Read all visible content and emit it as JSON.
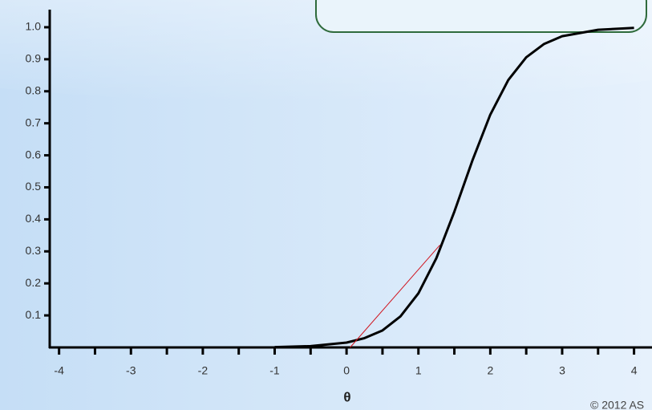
{
  "chart_data": {
    "type": "line",
    "x_label": "θ",
    "copyright": "© 2012 AS",
    "series": [
      {
        "color": "#000000",
        "width": 3,
        "x": [
          -1,
          -0.5,
          0,
          0.25,
          0.5,
          0.75,
          1,
          1.25,
          1.5,
          1.75,
          2,
          2.25,
          2.5,
          2.75,
          3,
          3.5,
          4
        ],
        "values": [
          0.001,
          0.004,
          0.015,
          0.029,
          0.053,
          0.097,
          0.169,
          0.279,
          0.424,
          0.583,
          0.727,
          0.835,
          0.906,
          0.948,
          0.972,
          0.992,
          0.998
        ]
      },
      {
        "color": "#d0141e",
        "width": 1,
        "x": [
          0.05,
          1.3
        ],
        "values": [
          0,
          0.32
        ]
      }
    ],
    "xlim": [
      -4.13,
      4.25
    ],
    "ylim": [
      0,
      1.055
    ],
    "xticks": [
      -4,
      -3,
      -2,
      -1,
      0,
      1,
      2,
      3,
      4
    ],
    "xminorticks": [
      -3.5,
      -2.5,
      -1.5,
      -0.5,
      0.5,
      1.5,
      2.5,
      3.5
    ],
    "yticks": [
      0.1,
      0.2,
      0.3,
      0.4,
      0.5,
      0.6,
      0.7,
      0.8,
      0.9,
      {
        "value": 1,
        "label": "1.0"
      }
    ]
  }
}
